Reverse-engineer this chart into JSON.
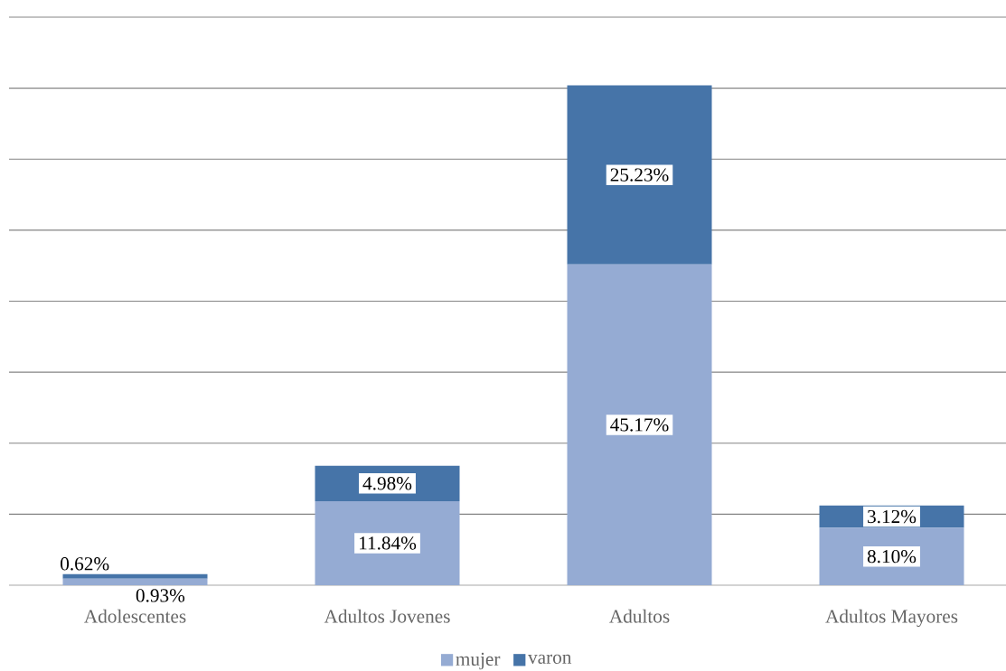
{
  "chart_data": {
    "type": "bar",
    "stacked": true,
    "categories": [
      "Adolescentes",
      "Adultos Jovenes",
      "Adultos",
      "Adultos Mayores"
    ],
    "series": [
      {
        "name": "mujer",
        "color": "#95abd3",
        "values": [
          0.93,
          11.84,
          45.17,
          8.1
        ],
        "value_labels": [
          "0.93%",
          "11.84%",
          "45.17%",
          "8.10%"
        ]
      },
      {
        "name": "varon",
        "color": "#4674a8",
        "values": [
          0.62,
          4.98,
          25.23,
          3.12
        ],
        "value_labels": [
          "0.62%",
          "4.98%",
          "25.23%",
          "3.12%"
        ]
      }
    ],
    "ylim": [
      0,
      80
    ],
    "yticks": [
      {
        "value": 0,
        "label": null
      },
      {
        "value": 10,
        "label": null
      },
      {
        "value": 20,
        "label": null
      },
      {
        "value": 30,
        "label": null
      },
      {
        "value": 40,
        "label": null
      },
      {
        "value": 50,
        "label": null
      },
      {
        "value": 60,
        "label": null
      },
      {
        "value": 70,
        "label": null
      },
      {
        "value": 80,
        "label": null
      }
    ],
    "grid": "y",
    "legend": "bottom"
  }
}
